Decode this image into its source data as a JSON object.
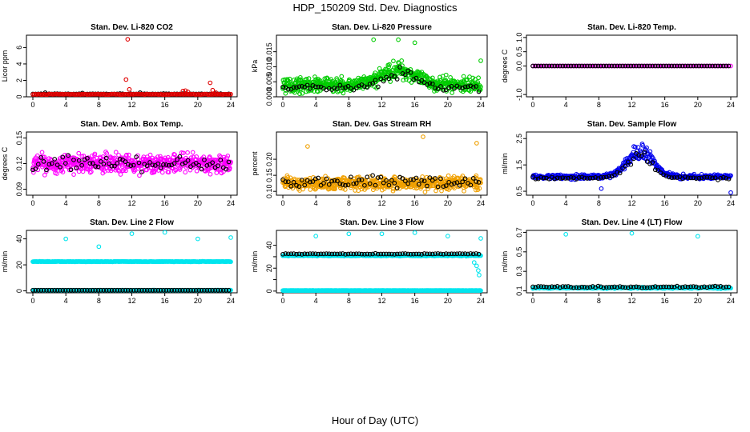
{
  "figure": {
    "title": "HDP_150209  Std. Dev. Diagnostics",
    "xlabel": "Hour of Day (UTC)"
  },
  "chart_data": [
    {
      "type": "scatter",
      "title": "Stan. Dev. Li-820 CO2",
      "ylabel": "Licor ppm",
      "xlim": [
        0,
        24
      ],
      "ylim": [
        0,
        7.5
      ],
      "xticks": [
        0,
        4,
        8,
        12,
        16,
        20,
        24
      ],
      "yticks": [
        0,
        2,
        4,
        6
      ],
      "ytick_labels": [
        "0",
        "2",
        "4",
        "6"
      ],
      "series": [
        {
          "name": "black",
          "color": "#000000",
          "base": 0.35,
          "noise": 0.05,
          "step": 0.33,
          "outliers": [
            [
              1.5,
              0.5
            ],
            [
              6,
              0.45
            ],
            [
              13,
              0.5
            ]
          ]
        },
        {
          "name": "colored",
          "color": "#e00000",
          "base": 0.3,
          "noise": 0.05,
          "step": 0.16,
          "outliers": [
            [
              11.5,
              7.0
            ],
            [
              11.3,
              2.1
            ],
            [
              11.7,
              0.9
            ],
            [
              18.2,
              0.7
            ],
            [
              18.5,
              0.75
            ],
            [
              18.8,
              0.6
            ],
            [
              21.5,
              1.7
            ],
            [
              21.8,
              0.8
            ],
            [
              22.2,
              0.5
            ]
          ]
        }
      ]
    },
    {
      "type": "scatter",
      "title": "Stan. Dev. Li-820 Pressure",
      "ylabel": "kPa",
      "xlim": [
        0,
        24
      ],
      "ylim": [
        0,
        0.0205
      ],
      "xticks": [
        0,
        4,
        8,
        12,
        16,
        20,
        24
      ],
      "yticks": [
        0,
        0.005,
        0.01,
        0.015
      ],
      "ytick_labels": [
        "0.000",
        "0.005",
        "0.010",
        "0.015"
      ],
      "series": [
        {
          "name": "colored",
          "color": "#00cc00",
          "base": 0.004,
          "noise": 0.0035,
          "step": 0.04,
          "peak": {
            "center": 14,
            "width": 2.8,
            "amp": 0.005
          },
          "outliers": [
            [
              11,
              0.019
            ],
            [
              14,
              0.019
            ],
            [
              16,
              0.018
            ],
            [
              24,
              0.012
            ]
          ]
        },
        {
          "name": "black",
          "color": "#000000",
          "base": 0.003,
          "noise": 0.0018,
          "step": 0.33,
          "peak": {
            "center": 14,
            "width": 2.8,
            "amp": 0.005
          }
        }
      ]
    },
    {
      "type": "scatter",
      "title": "Stan. Dev. Li-820 Temp.",
      "ylabel": "degrees C",
      "xlim": [
        0,
        24
      ],
      "ylim": [
        -1.08,
        1.08
      ],
      "xticks": [
        0,
        4,
        8,
        12,
        16,
        20,
        24
      ],
      "yticks": [
        -1,
        0,
        0.5,
        1
      ],
      "ytick_labels": [
        "-1.0",
        "0.0",
        "0.5",
        "1.0"
      ],
      "series": [
        {
          "name": "colored",
          "color": "#ff00ff",
          "base": 0,
          "noise": 0,
          "step": 0.25
        },
        {
          "name": "black",
          "color": "#000000",
          "base": 0,
          "noise": 0,
          "step": 0.33
        }
      ]
    },
    {
      "type": "scatter",
      "title": "Stan. Dev. Amb. Box Temp.",
      "ylabel": "degrees C",
      "xlim": [
        0,
        24
      ],
      "ylim": [
        0.083,
        0.157
      ],
      "xticks": [
        0,
        4,
        8,
        12,
        16,
        20,
        24
      ],
      "yticks": [
        0.09,
        0.12,
        0.15
      ],
      "ytick_labels": [
        "0.09",
        "0.12",
        "0.15"
      ],
      "series": [
        {
          "name": "colored",
          "color": "#ff00ff",
          "base": 0.12,
          "noise": 0.016,
          "step": 0.04
        },
        {
          "name": "black",
          "color": "#000000",
          "base": 0.12,
          "noise": 0.013,
          "step": 0.33
        }
      ]
    },
    {
      "type": "scatter",
      "title": "Stan. Dev. Gas Stream RH",
      "ylabel": "percent",
      "xlim": [
        0,
        24
      ],
      "ylim": [
        0.088,
        0.285
      ],
      "xticks": [
        0,
        4,
        8,
        12,
        16,
        20,
        24
      ],
      "yticks": [
        0.1,
        0.15,
        0.2
      ],
      "ytick_labels": [
        "0.10",
        "0.15",
        "0.20"
      ],
      "series": [
        {
          "name": "colored",
          "color": "#f0a000",
          "base": 0.125,
          "noise": 0.03,
          "step": 0.04,
          "outliers": [
            [
              17,
              0.27
            ],
            [
              23.5,
              0.25
            ],
            [
              3,
              0.24
            ]
          ]
        },
        {
          "name": "black",
          "color": "#000000",
          "base": 0.13,
          "noise": 0.025,
          "step": 0.33
        }
      ]
    },
    {
      "type": "scatter",
      "title": "Stan. Dev. Sample Flow",
      "ylabel": "ml/min",
      "xlim": [
        0,
        24
      ],
      "ylim": [
        0.35,
        2.75
      ],
      "xticks": [
        0,
        4,
        8,
        12,
        16,
        20,
        24
      ],
      "yticks": [
        0.5,
        1.5,
        2.5
      ],
      "ytick_labels": [
        "0.5",
        "1.5",
        "2.5"
      ],
      "series": [
        {
          "name": "colored",
          "color": "#0000ee",
          "base": 1.05,
          "noise": 0.12,
          "step": 0.06,
          "peak": {
            "center": 13,
            "width": 2.2,
            "amp": 0.95
          },
          "outliers": [
            [
              24,
              0.45
            ],
            [
              8.3,
              0.6
            ]
          ]
        },
        {
          "name": "black",
          "color": "#000000",
          "base": 1.0,
          "noise": 0.08,
          "step": 0.33,
          "peak": {
            "center": 13,
            "width": 2.2,
            "amp": 0.8
          }
        }
      ]
    },
    {
      "type": "scatter",
      "title": "Stan. Dev. Line 2 Flow",
      "ylabel": "ml/min",
      "xlim": [
        0,
        24
      ],
      "ylim": [
        -1.5,
        46.5
      ],
      "xticks": [
        0,
        4,
        8,
        12,
        16,
        20,
        24
      ],
      "yticks": [
        0,
        20,
        40
      ],
      "ytick_labels": [
        "0",
        "20",
        "40"
      ],
      "series": [
        {
          "name": "colored",
          "color": "#00e5ee",
          "base": 22.5,
          "noise": 0.3,
          "step": 0.08,
          "outliers": [
            [
              4,
              40
            ],
            [
              8,
              34
            ],
            [
              12,
              44
            ],
            [
              16,
              45
            ],
            [
              20,
              40
            ],
            [
              24,
              41
            ]
          ]
        },
        {
          "name": "colored-low",
          "color": "#00e5ee",
          "base": 0.5,
          "noise": 0.1,
          "step": 0.08
        },
        {
          "name": "black",
          "color": "#000000",
          "base": 0.5,
          "noise": 0.05,
          "step": 0.33
        }
      ]
    },
    {
      "type": "scatter",
      "title": "Stan. Dev. Line 3 Flow",
      "ylabel": "ml/min",
      "xlim": [
        0,
        24
      ],
      "ylim": [
        -1.5,
        53
      ],
      "xticks": [
        0,
        4,
        8,
        12,
        16,
        20,
        24
      ],
      "yticks": [
        0,
        10,
        20,
        30,
        40
      ],
      "ytick_labels": [
        "0",
        "",
        "20",
        "",
        "40"
      ],
      "series": [
        {
          "name": "colored",
          "color": "#00e5ee",
          "base": 31,
          "noise": 0.6,
          "step": 0.08,
          "outliers": [
            [
              4,
              48
            ],
            [
              8,
              50
            ],
            [
              12,
              50
            ],
            [
              16,
              51
            ],
            [
              20,
              48
            ],
            [
              24,
              46
            ],
            [
              23.5,
              22
            ],
            [
              23.7,
              18
            ],
            [
              23.8,
              14
            ],
            [
              23.2,
              25
            ]
          ]
        },
        {
          "name": "colored-low",
          "color": "#00e5ee",
          "base": 0.5,
          "noise": 0.1,
          "step": 0.08
        },
        {
          "name": "black",
          "color": "#000000",
          "base": 32.5,
          "noise": 0.5,
          "step": 0.33
        }
      ]
    },
    {
      "type": "scatter",
      "title": "Stan. Dev. Line 4 (LT) Flow",
      "ylabel": "ml/min",
      "xlim": [
        0,
        24
      ],
      "ylim": [
        0.08,
        0.72
      ],
      "xticks": [
        0,
        4,
        8,
        12,
        16,
        20,
        24
      ],
      "yticks": [
        0.1,
        0.3,
        0.5,
        0.7
      ],
      "ytick_labels": [
        "0.1",
        "0.3",
        "0.5",
        "0.7"
      ],
      "series": [
        {
          "name": "colored",
          "color": "#00e5ee",
          "base": 0.13,
          "noise": 0.01,
          "step": 0.08,
          "outliers": [
            [
              4,
              0.68
            ],
            [
              12,
              0.69
            ],
            [
              20,
              0.66
            ]
          ]
        },
        {
          "name": "black",
          "color": "#000000",
          "base": 0.14,
          "noise": 0.012,
          "step": 0.33
        }
      ]
    }
  ]
}
